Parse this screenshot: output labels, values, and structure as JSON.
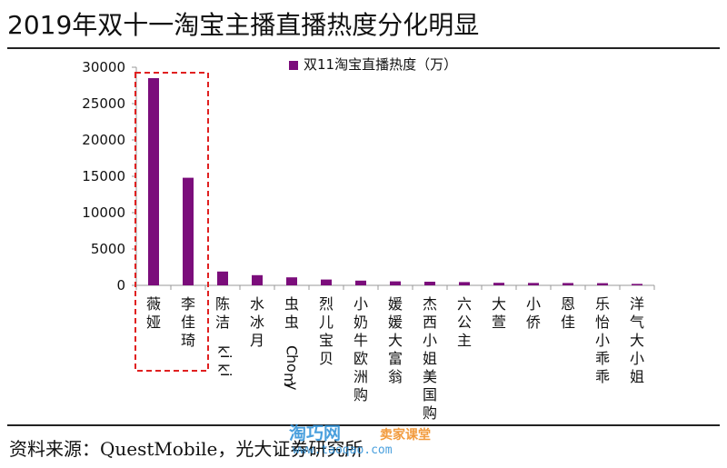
{
  "header": {
    "title": "2019年双十一淘宝主播直播热度分化明显"
  },
  "footer": {
    "source": "资料来源：QuestMobile，光大证券研究所"
  },
  "watermark": {
    "brand": "淘巧网",
    "sub": "卖家课堂",
    "url": "www.taoqao.com"
  },
  "colors": {
    "bar": "#7b0d7b",
    "highlight_box": "#e02020",
    "axis": "#999999"
  },
  "chart_data": {
    "type": "bar",
    "categories": [
      "薇娅",
      "李佳琦",
      "陈洁kiki",
      "水冰月",
      "虫虫Chomy",
      "烈儿宝贝",
      "小奶牛欧洲购",
      "媛媛大富翁",
      "杰西小姐美国购",
      "六公主",
      "大萱",
      "小侨",
      "恩佳",
      "乐怡小乖乖",
      "洋气大小姐"
    ],
    "series": [
      {
        "name": "双11淘宝直播热度（万）",
        "values": [
          28500,
          14800,
          1900,
          1400,
          1100,
          800,
          650,
          550,
          500,
          450,
          350,
          330,
          320,
          300,
          200
        ]
      }
    ],
    "yticks": [
      "0",
      "5000",
      "10000",
      "15000",
      "20000",
      "25000",
      "30000"
    ],
    "ylim": [
      0,
      30000
    ],
    "grid": false,
    "legend_position": "top-center",
    "highlight_categories": [
      "薇娅",
      "李佳琦"
    ]
  }
}
